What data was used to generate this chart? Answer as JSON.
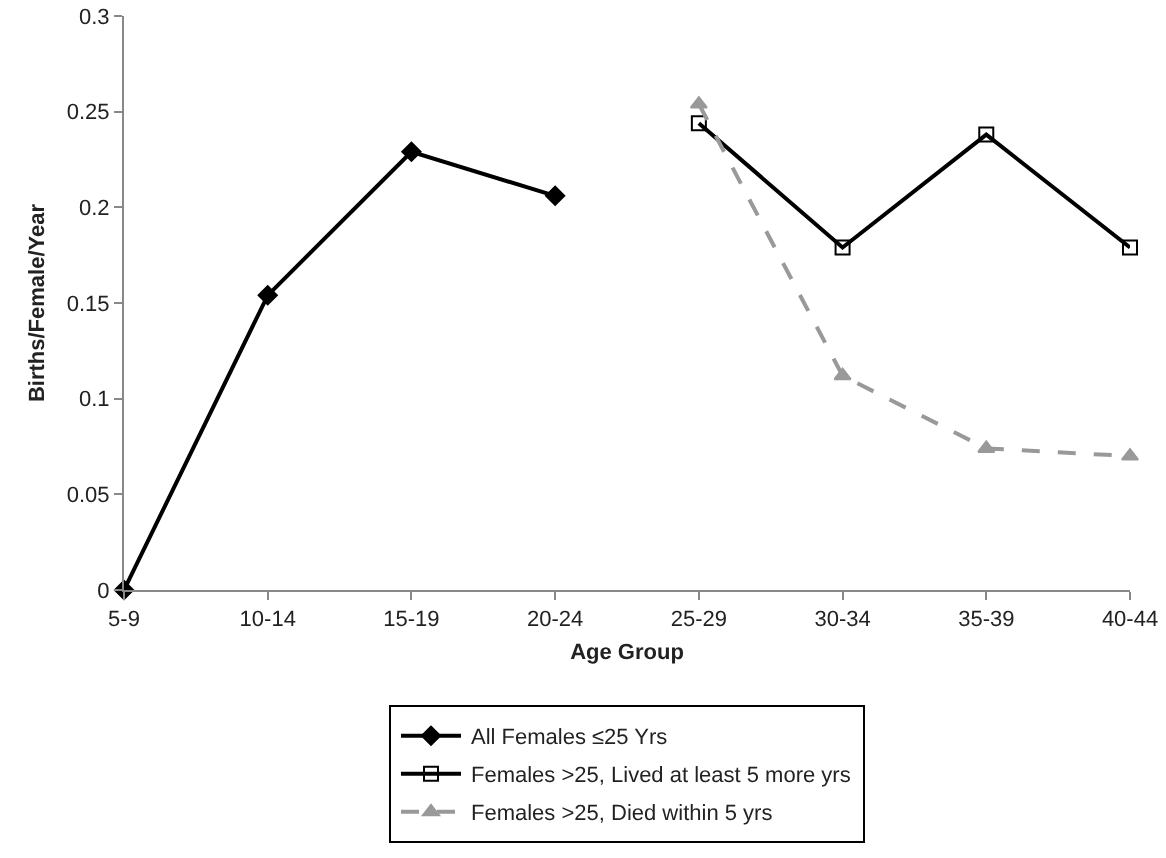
{
  "chart_data": {
    "type": "line",
    "xlabel": "Age Group",
    "ylabel": "Births/Female/Year",
    "categories": [
      "5-9",
      "10-14",
      "15-19",
      "20-24",
      "25-29",
      "30-34",
      "35-39",
      "40-44"
    ],
    "series": [
      {
        "name": "All Females ≤25 Yrs",
        "color": "#000000",
        "marker": "diamond",
        "line_style": "solid",
        "values": [
          0,
          0.154,
          0.229,
          0.206,
          null,
          null,
          null,
          null
        ]
      },
      {
        "name": "Females >25, Lived at least 5 more yrs",
        "color": "#000000",
        "marker": "square",
        "line_style": "solid",
        "values": [
          null,
          null,
          null,
          null,
          0.244,
          0.179,
          0.238,
          0.179
        ]
      },
      {
        "name": "Females >25, Died within 5 yrs",
        "color": "#999999",
        "marker": "triangle",
        "line_style": "dashed",
        "values": [
          null,
          null,
          null,
          null,
          0.254,
          0.112,
          0.074,
          0.07
        ]
      }
    ],
    "ylim": [
      0,
      0.3
    ],
    "yticks": [
      0,
      0.05,
      0.1,
      0.15,
      0.2,
      0.25,
      0.3
    ],
    "grid": false,
    "legend": "bottom"
  }
}
